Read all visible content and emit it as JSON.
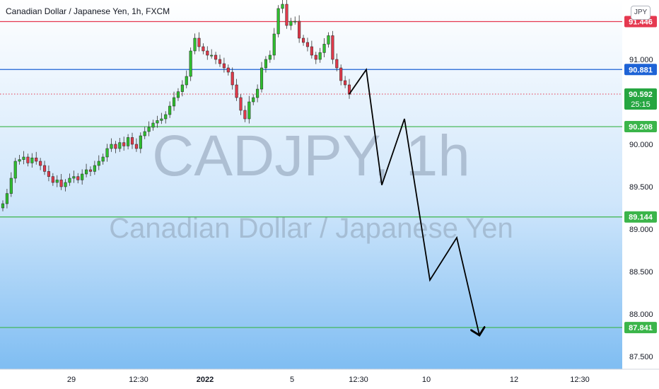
{
  "header": {
    "title": "Canadian Dollar / Japanese Yen, 1h, FXCM",
    "currency": "JPY"
  },
  "watermark": {
    "symbol": "CADJPY, 1h",
    "description": "Canadian Dollar / Japanese Yen"
  },
  "colors": {
    "background_top": "#ffffff",
    "background_bottom": "#7fbdf2",
    "up_candle": "#26a69a",
    "candle_up_body": "#2fbf2f",
    "candle_down_body": "#e0394a",
    "resistance": "#e53950",
    "pivot": "#1e63d6",
    "support": "#3bb54a",
    "current_price": "#26a641",
    "projection": "#000000"
  },
  "chart_data": {
    "type": "candlestick",
    "title": "Canadian Dollar / Japanese Yen, 1h, FXCM",
    "ylim": [
      87.35,
      91.7
    ],
    "y_ticks": [
      "91.000",
      "90.000",
      "89.500",
      "89.000",
      "88.500",
      "88.000",
      "87.500"
    ],
    "x_ticks": [
      "29",
      "12:30",
      "2022",
      "5",
      "12:30",
      "10",
      "12",
      "12:30"
    ],
    "horizontal_levels": [
      {
        "price": 91.446,
        "label": "91.446",
        "role": "resistance"
      },
      {
        "price": 90.881,
        "label": "90.881",
        "role": "pivot"
      },
      {
        "price": 90.208,
        "label": "90.208",
        "role": "support"
      },
      {
        "price": 89.144,
        "label": "89.144",
        "role": "support"
      },
      {
        "price": 87.841,
        "label": "87.841",
        "role": "support"
      }
    ],
    "current_price": {
      "price": 90.592,
      "label": "90.592",
      "countdown": "25:15"
    },
    "price_path": [
      89.3,
      89.42,
      89.6,
      89.8,
      89.82,
      89.85,
      89.78,
      89.84,
      89.8,
      89.75,
      89.68,
      89.62,
      89.55,
      89.58,
      89.5,
      89.55,
      89.6,
      89.62,
      89.58,
      89.65,
      89.7,
      89.68,
      89.75,
      89.8,
      89.85,
      89.95,
      90.0,
      89.95,
      90.02,
      89.98,
      90.08,
      90.0,
      89.95,
      90.1,
      90.15,
      90.2,
      90.25,
      90.28,
      90.3,
      90.35,
      90.45,
      90.55,
      90.62,
      90.7,
      90.8,
      91.1,
      91.25,
      91.15,
      91.1,
      91.05,
      91.05,
      91.0,
      90.95,
      90.9,
      90.85,
      90.7,
      90.55,
      90.4,
      90.3,
      90.5,
      90.55,
      90.65,
      90.9,
      91.0,
      91.05,
      91.3,
      91.6,
      91.65,
      91.4,
      91.45,
      91.45,
      91.25,
      91.2,
      91.15,
      91.05,
      91.0,
      91.08,
      91.18,
      91.28,
      91.0,
      90.9,
      90.75,
      90.7,
      90.59
    ],
    "projection": [
      {
        "x": "12:30",
        "y": 90.88
      },
      {
        "y": 89.52
      },
      {
        "y": 90.3
      },
      {
        "y": 88.4
      },
      {
        "y": 88.9
      },
      {
        "y": 87.75
      }
    ]
  }
}
